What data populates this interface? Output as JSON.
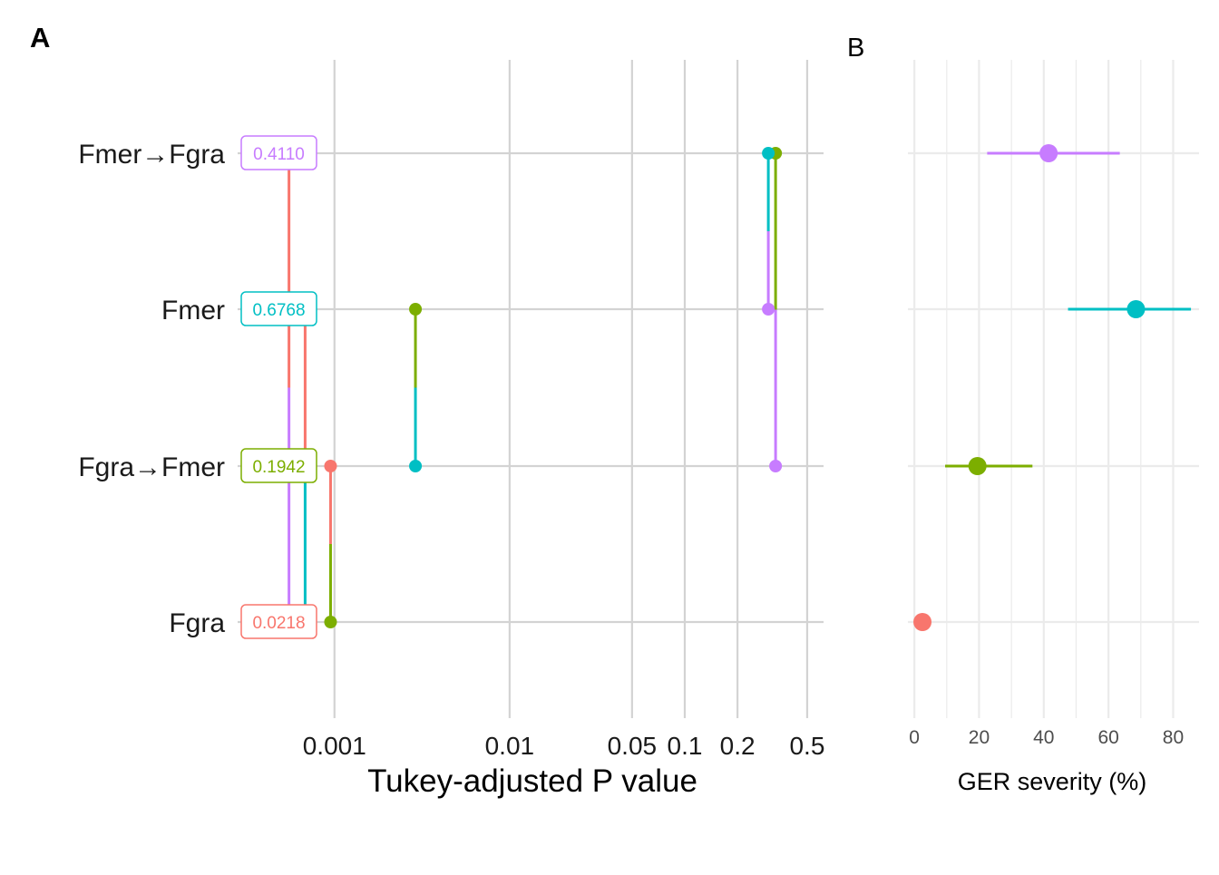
{
  "panel_labels": {
    "a": "A",
    "b": "B"
  },
  "colors": {
    "Fgra": "#F8766D",
    "Fgra→Fmer": "#7CAE00",
    "Fmer": "#00BFC4",
    "Fmer→Fgra": "#C77CFF",
    "grid_a": "#d3d3d3",
    "grid_b": "#ebebeb"
  },
  "chart_data": [
    {
      "panel": "A",
      "type": "scatter",
      "subtype": "lollipop-connections",
      "xlabel": "Tukey-adjusted P value",
      "ylabel": "",
      "x_scale": "log10",
      "xlim": [
        0.00028,
        0.62
      ],
      "x_ticks": [
        0.001,
        0.01,
        0.05,
        0.1,
        0.2,
        0.5
      ],
      "x_tick_labels": [
        "0.001",
        "0.01",
        "0.05",
        "0.1",
        "0.2",
        "0.5"
      ],
      "categories": [
        "Fgra",
        "Fgra→Fmer",
        "Fmer",
        "Fmer→Fgra"
      ],
      "category_badges": [
        "0.0218",
        "0.1942",
        "0.6768",
        "0.4110"
      ],
      "comparisons": [
        {
          "from": "Fgra",
          "to": "Fgra→Fmer",
          "p": 0.00095
        },
        {
          "from": "Fgra",
          "to": "Fmer",
          "p": 0.00068
        },
        {
          "from": "Fgra",
          "to": "Fmer→Fgra",
          "p": 0.00055
        },
        {
          "from": "Fgra→Fmer",
          "to": "Fmer",
          "p": 0.0029
        },
        {
          "from": "Fgra→Fmer",
          "to": "Fmer→Fgra",
          "p": 0.33
        },
        {
          "from": "Fmer",
          "to": "Fmer→Fgra",
          "p": 0.3
        }
      ],
      "grid": true,
      "legend": "none"
    },
    {
      "panel": "B",
      "type": "scatter",
      "subtype": "point-range",
      "xlabel": "GER severity (%)",
      "ylabel": "",
      "xlim": [
        -2,
        88
      ],
      "x_ticks": [
        0,
        20,
        40,
        60,
        80
      ],
      "categories": [
        "Fgra",
        "Fgra→Fmer",
        "Fmer",
        "Fmer→Fgra"
      ],
      "points": [
        {
          "category": "Fgra",
          "value": 2.5,
          "low": 2.5,
          "high": 2.5
        },
        {
          "category": "Fgra→Fmer",
          "value": 19.5,
          "low": 9.5,
          "high": 36.5
        },
        {
          "category": "Fmer",
          "value": 68.5,
          "low": 47.5,
          "high": 85.5
        },
        {
          "category": "Fmer→Fgra",
          "value": 41.5,
          "low": 22.5,
          "high": 63.5
        }
      ],
      "grid": true,
      "legend": "none"
    }
  ]
}
